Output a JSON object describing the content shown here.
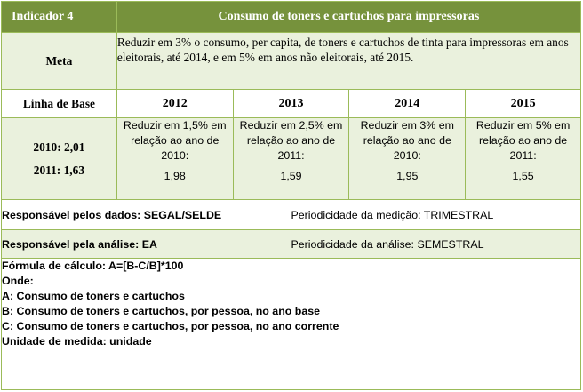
{
  "header": {
    "indicator": "Indicador 4",
    "title": "Consumo de toners e cartuchos para impressoras"
  },
  "meta": {
    "label": "Meta",
    "text": "Reduzir em 3% o consumo, per capita, de toners e cartuchos de tinta para impressoras em anos eleitorais, até 2014, e em 5% em anos não eleitorais, até 2015."
  },
  "baseline": {
    "label": "Linha de Base",
    "values": [
      "2010: 2,01",
      "2011: 1,63"
    ]
  },
  "years": [
    {
      "year": "2012",
      "target": "Reduzir em 1,5% em relação ao ano de 2010:",
      "value": "1,98"
    },
    {
      "year": "2013",
      "target": "Reduzir em 2,5% em relação ao ano de 2011:",
      "value": "1,59"
    },
    {
      "year": "2014",
      "target": "Reduzir em 3% em relação ao ano de 2010:",
      "value": "1,95"
    },
    {
      "year": "2015",
      "target": "Reduzir em 5% em relação ao ano de 2011:",
      "value": "1,55"
    }
  ],
  "responsibility": {
    "data_label": "Responsável pelos dados:",
    "data_value": "SEGAL/SELDE",
    "measure_label": "Periodicidade da medição:",
    "measure_value": "TRIMESTRAL",
    "analysis_label": "Responsável pela análise:",
    "analysis_value": "EA",
    "analysis_period_label": "Periodicidade da análise:",
    "analysis_period_value": "SEMESTRAL"
  },
  "formula": {
    "lines": [
      "Fórmula de cálculo: A=[B-C/B]*100",
      "Onde:",
      "A: Consumo de toners e cartuchos",
      "B: Consumo de toners e cartuchos, por pessoa, no ano base",
      "C: Consumo de toners e cartuchos, por pessoa, no ano corrente",
      "Unidade de medida: unidade"
    ]
  }
}
